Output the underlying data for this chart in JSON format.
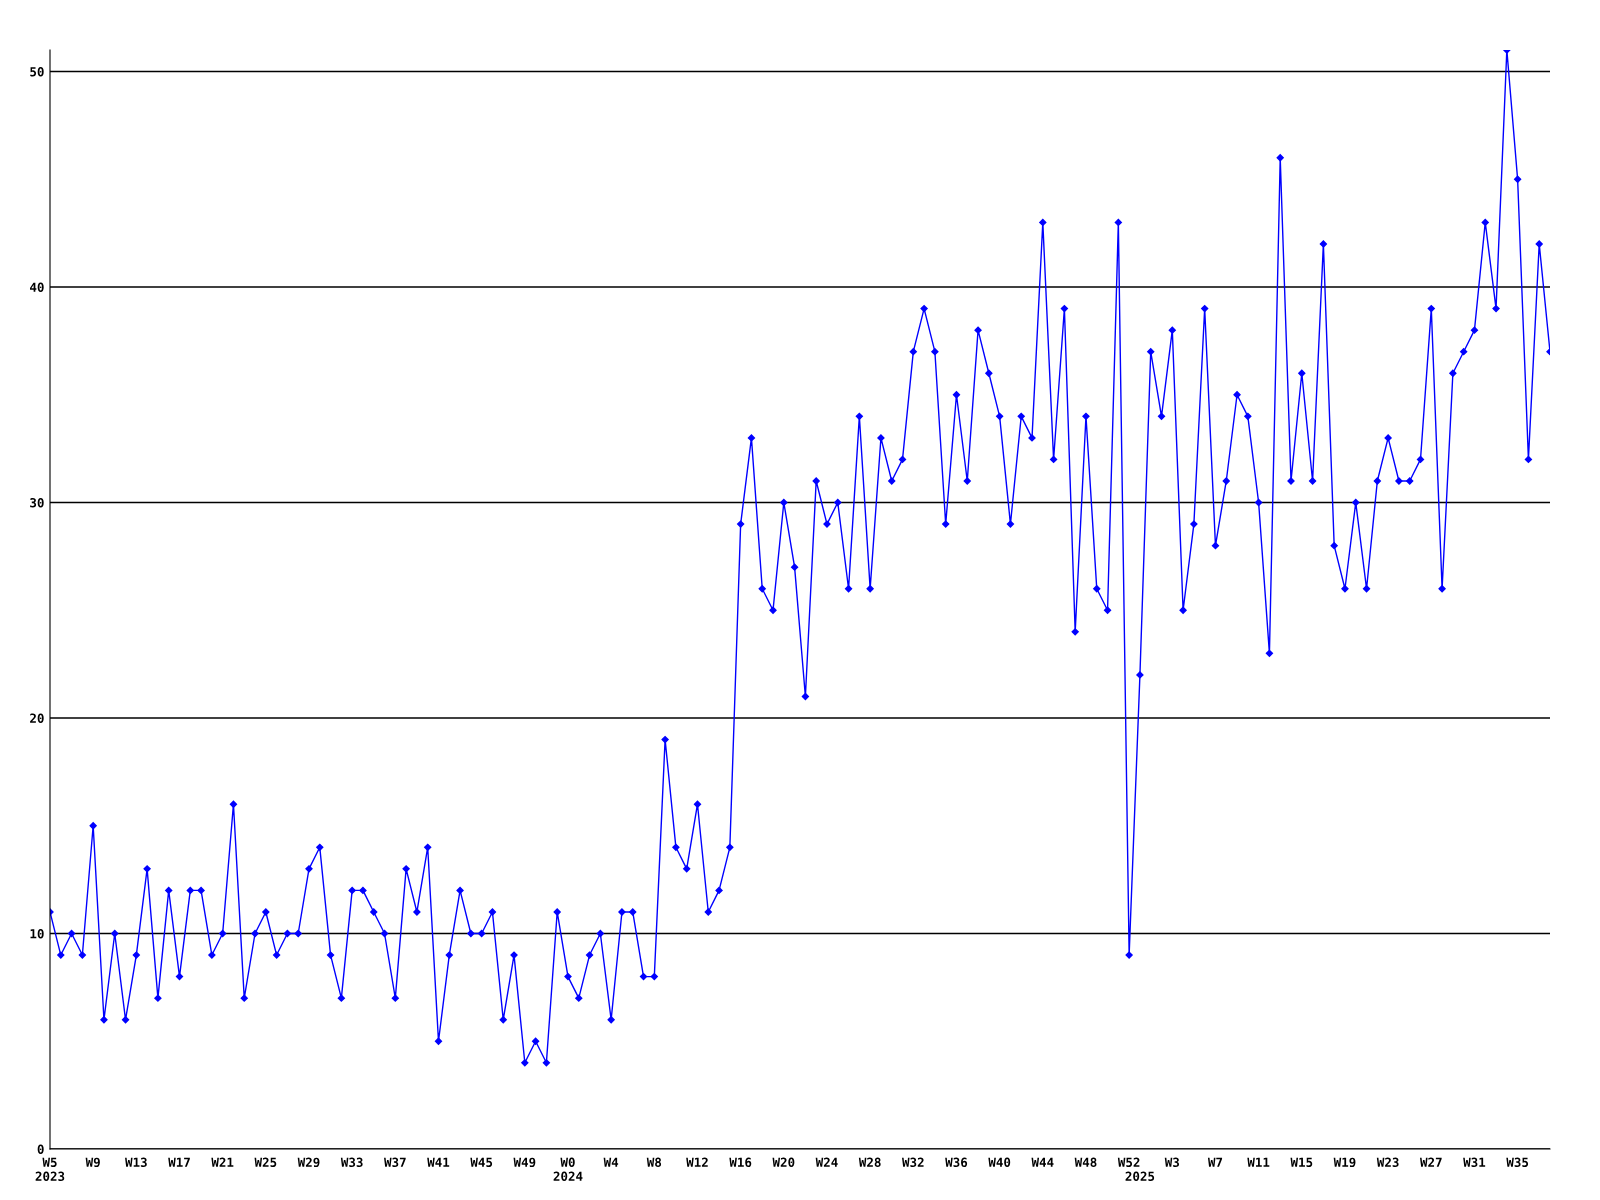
{
  "chart_data": {
    "type": "line",
    "categories": [
      "W5\n2023",
      null,
      null,
      null,
      "W9",
      null,
      null,
      null,
      "W13",
      null,
      null,
      null,
      "W17",
      null,
      null,
      null,
      "W21",
      null,
      null,
      null,
      "W25",
      null,
      null,
      null,
      "W29",
      null,
      null,
      null,
      "W33",
      null,
      null,
      null,
      "W37",
      null,
      null,
      null,
      "W41",
      null,
      null,
      null,
      "W45",
      null,
      null,
      null,
      "W49",
      null,
      null,
      null,
      "W0\n2024",
      null,
      null,
      null,
      "W4",
      null,
      null,
      null,
      "W8",
      null,
      null,
      null,
      "W12",
      null,
      null,
      null,
      "W16",
      null,
      null,
      null,
      "W20",
      null,
      null,
      null,
      "W24",
      null,
      null,
      null,
      "W28",
      null,
      null,
      null,
      "W32",
      null,
      null,
      null,
      "W36",
      null,
      null,
      null,
      "W40",
      null,
      null,
      null,
      "W44",
      null,
      null,
      null,
      "W48",
      null,
      null,
      null,
      "W52",
      "\n2025",
      null,
      null,
      "W3",
      null,
      null,
      null,
      "W7",
      null,
      null,
      null,
      "W11",
      null,
      null,
      null,
      "W15",
      null,
      null,
      null,
      "W19",
      null,
      null,
      null,
      "W23",
      null,
      null,
      null,
      "W27",
      null,
      null,
      null,
      "W31",
      null,
      null,
      null,
      "W35",
      null,
      null,
      null
    ],
    "series": [
      {
        "color": "#0000ff",
        "values": [
          11,
          9,
          10,
          9,
          15,
          6,
          10,
          6,
          9,
          13,
          7,
          12,
          8,
          12,
          12,
          9,
          10,
          16,
          7,
          10,
          11,
          9,
          10,
          10,
          13,
          14,
          9,
          7,
          12,
          12,
          11,
          10,
          7,
          13,
          11,
          14,
          5,
          9,
          12,
          10,
          10,
          11,
          6,
          9,
          4,
          5,
          4,
          11,
          8,
          7,
          9,
          10,
          6,
          11,
          11,
          8,
          8,
          19,
          14,
          13,
          16,
          11,
          12,
          14,
          29,
          33,
          26,
          25,
          30,
          27,
          21,
          31,
          29,
          30,
          26,
          34,
          26,
          33,
          31,
          32,
          37,
          39,
          37,
          29,
          35,
          31,
          38,
          36,
          34,
          29,
          34,
          33,
          43,
          32,
          39,
          24,
          34,
          26,
          25,
          43,
          9,
          22,
          37,
          34,
          38,
          25,
          29,
          39,
          28,
          31,
          35,
          34,
          30,
          23,
          46,
          31,
          36,
          31,
          42,
          28,
          26,
          30,
          26,
          31,
          33,
          31,
          31,
          32,
          39,
          26,
          36,
          37,
          38,
          43,
          39,
          51,
          45,
          32,
          42,
          37
        ]
      }
    ],
    "ylim": [
      0,
      51
    ],
    "yticks": [
      0,
      10,
      20,
      30,
      40,
      50
    ],
    "grid": "y",
    "marker": "diamond",
    "line_style": "solid",
    "legend": false
  }
}
